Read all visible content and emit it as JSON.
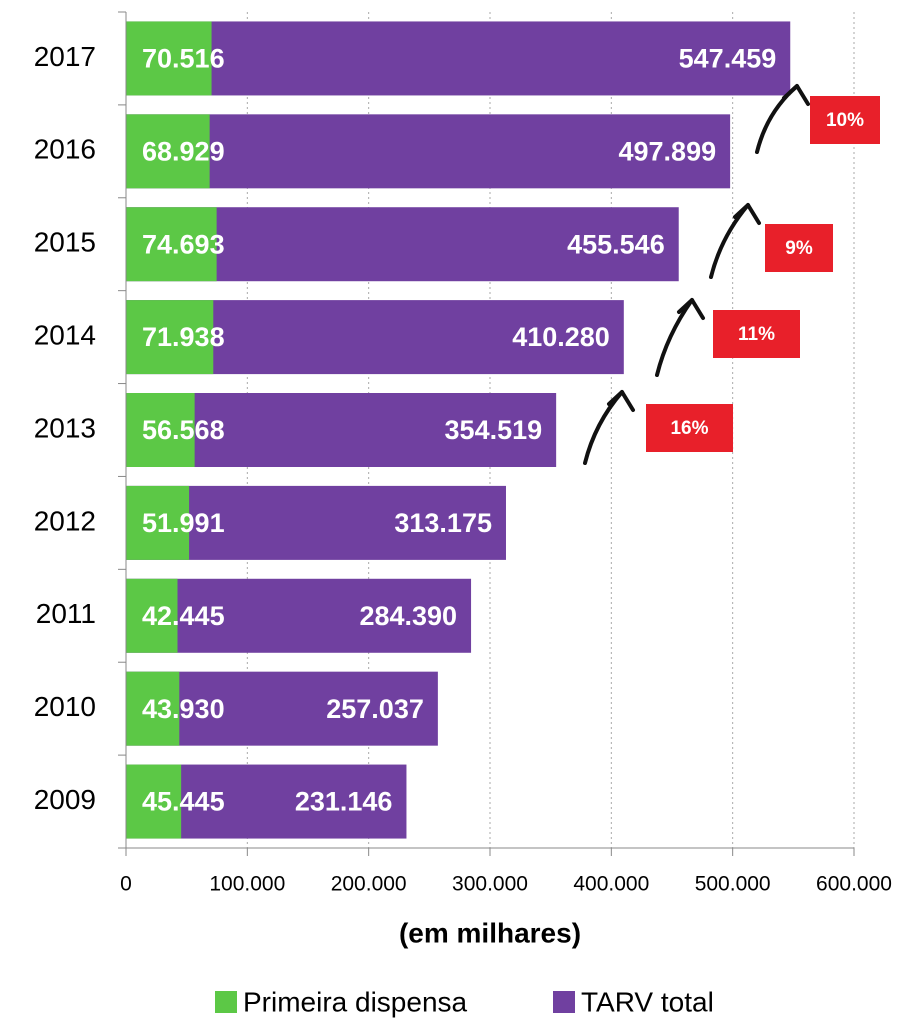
{
  "chart_data": {
    "type": "bar",
    "orientation": "horizontal",
    "x_label": "(em milhares)",
    "categories": [
      "2017",
      "2016",
      "2015",
      "2014",
      "2013",
      "2012",
      "2011",
      "2010",
      "2009"
    ],
    "series": [
      {
        "name": "TARV total",
        "color": "#7040a0",
        "values": [
          547459,
          497899,
          455546,
          410280,
          354519,
          313175,
          284390,
          257037,
          231146
        ],
        "value_labels": [
          "547.459",
          "497.899",
          "455.546",
          "410.280",
          "354.519",
          "313.175",
          "284.390",
          "257.037",
          "231.146"
        ]
      },
      {
        "name": "Primeira dispensa",
        "color": "#5cc846",
        "values": [
          70516,
          68929,
          74693,
          71938,
          56568,
          51991,
          42445,
          43930,
          45445
        ],
        "value_labels": [
          "70.516",
          "68.929",
          "74.693",
          "71.938",
          "56.568",
          "51.991",
          "42.445",
          "43.930",
          "45.445"
        ]
      }
    ],
    "xlim": [
      0,
      600000
    ],
    "xticks": [
      0,
      {
        "value": 100000,
        "label": "100.000"
      },
      {
        "value": 200000,
        "label": "200.000"
      },
      {
        "value": 300000,
        "label": "300.000"
      },
      {
        "value": 400000,
        "label": "400.000"
      },
      {
        "value": 500000,
        "label": "500.000"
      },
      {
        "value": 600000,
        "label": "600.000"
      }
    ],
    "grid": true,
    "legend": "bottom",
    "annotations": [
      {
        "text": "10%"
      },
      {
        "text": "9%"
      },
      {
        "text": "11%"
      },
      {
        "text": "16%"
      }
    ],
    "annotation_color": "#e8202a"
  }
}
